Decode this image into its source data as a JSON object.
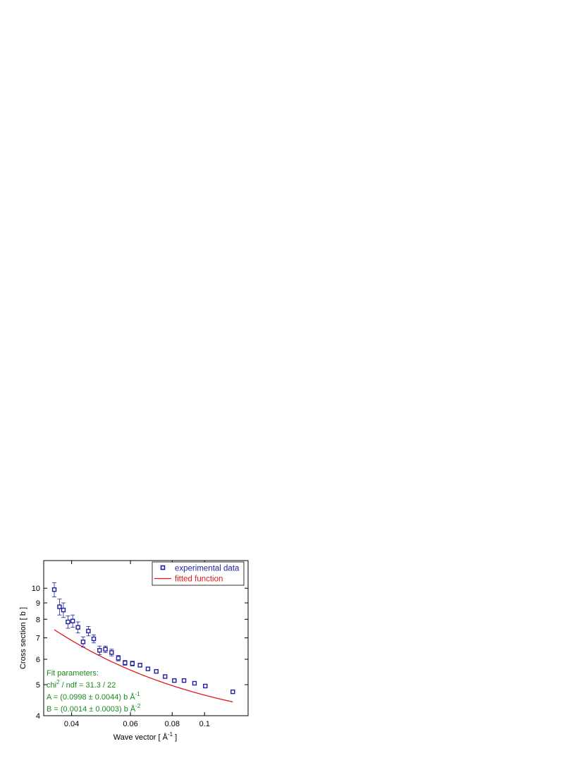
{
  "chart_data": {
    "type": "scatter",
    "title": "",
    "xlabel": "Wave vector [ Å",
    "xlabel_sup": "-1",
    "xlabel_end": " ]",
    "ylabel": "Cross section [ b ]",
    "x_scale": "log",
    "y_scale": "log",
    "xlim": [
      0.033,
      0.135
    ],
    "ylim": [
      4,
      12.2
    ],
    "x_ticks": [
      {
        "value": 0.04,
        "label": "0.04"
      },
      {
        "value": 0.06,
        "label": "0.06"
      },
      {
        "value": 0.08,
        "label": "0.08"
      },
      {
        "value": 0.1,
        "label": "0.1"
      }
    ],
    "y_ticks": [
      {
        "value": 4,
        "label": "4"
      },
      {
        "value": 5,
        "label": "5"
      },
      {
        "value": 6,
        "label": "6"
      },
      {
        "value": 7,
        "label": "7"
      },
      {
        "value": 8,
        "label": "8"
      },
      {
        "value": 9,
        "label": "9"
      },
      {
        "value": 10,
        "label": "10"
      }
    ],
    "grid": false,
    "legend_position": "top-right",
    "series": [
      {
        "name": "experimental data",
        "kind": "scatter",
        "marker": "square",
        "color": "#1f1fa0",
        "points": [
          {
            "x": 0.0355,
            "y": 9.9,
            "err": 0.5
          },
          {
            "x": 0.0368,
            "y": 8.75,
            "err": 0.5
          },
          {
            "x": 0.0378,
            "y": 8.55,
            "err": 0.45
          },
          {
            "x": 0.039,
            "y": 7.85,
            "err": 0.35
          },
          {
            "x": 0.0403,
            "y": 7.9,
            "err": 0.35
          },
          {
            "x": 0.0418,
            "y": 7.55,
            "err": 0.3
          },
          {
            "x": 0.0433,
            "y": 6.8,
            "err": 0.25
          },
          {
            "x": 0.0449,
            "y": 7.35,
            "err": 0.25
          },
          {
            "x": 0.0466,
            "y": 6.95,
            "err": 0.2
          },
          {
            "x": 0.0485,
            "y": 6.4,
            "err": 0.2
          },
          {
            "x": 0.0505,
            "y": 6.45,
            "err": 0.15
          },
          {
            "x": 0.0527,
            "y": 6.3,
            "err": 0.15
          },
          {
            "x": 0.0552,
            "y": 6.05,
            "err": 0.12
          },
          {
            "x": 0.0578,
            "y": 5.85,
            "err": 0.1
          },
          {
            "x": 0.0608,
            "y": 5.82,
            "err": 0.1
          },
          {
            "x": 0.0641,
            "y": 5.75,
            "err": 0.08
          },
          {
            "x": 0.0677,
            "y": 5.6,
            "err": 0.07
          },
          {
            "x": 0.0717,
            "y": 5.5,
            "err": 0.06
          },
          {
            "x": 0.0762,
            "y": 5.3,
            "err": 0.05
          },
          {
            "x": 0.0812,
            "y": 5.15,
            "err": 0.05
          },
          {
            "x": 0.0868,
            "y": 5.15,
            "err": 0.05
          },
          {
            "x": 0.0933,
            "y": 5.05,
            "err": 0.04
          },
          {
            "x": 0.1005,
            "y": 4.95,
            "err": 0.04
          },
          {
            "x": 0.1215,
            "y": 4.75,
            "err": 0.04
          }
        ]
      },
      {
        "name": "fitted function",
        "kind": "line",
        "color": "#e0191c",
        "x_range": [
          0.0355,
          0.1215
        ],
        "A": 0.0998,
        "B": 0.0014,
        "c": 3.5
      }
    ],
    "annotation": {
      "color": "#1a8a1a",
      "lines": [
        {
          "main": "Fit parameters:",
          "sup": "",
          "after": ""
        },
        {
          "main": "chi",
          "sup": "2",
          "after": " / ndf = 31.3 / 22"
        },
        {
          "main": "A = (0.0998 ± 0.0044) b Å",
          "sup": "-1",
          "after": ""
        },
        {
          "main": "B = (0.0014 ± 0.0003) b Å",
          "sup": "-2",
          "after": ""
        }
      ]
    }
  }
}
